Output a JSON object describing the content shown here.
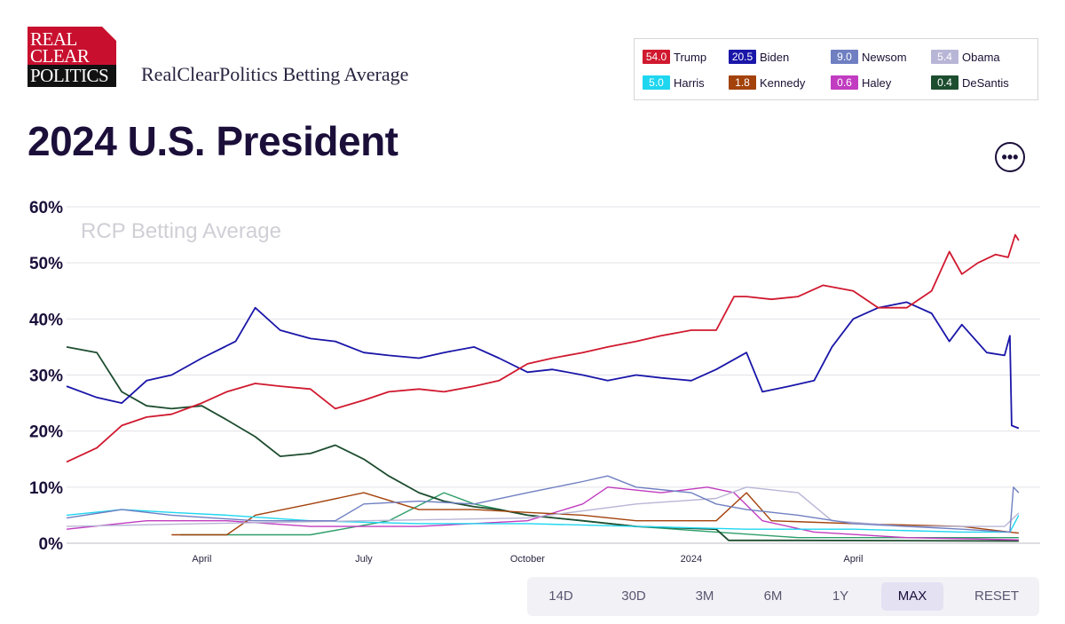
{
  "logo": {
    "line1": "REAL",
    "line2": "CLEAR",
    "line3": "POLITICS"
  },
  "header": {
    "site_title": "RealClearPolitics Betting Average"
  },
  "page": {
    "title": "2024 U.S. President"
  },
  "legend": [
    {
      "value": "54.0",
      "name": "Trump",
      "color": "#d0192f"
    },
    {
      "value": "20.5",
      "name": "Biden",
      "color": "#1a16a8"
    },
    {
      "value": "9.0",
      "name": "Newsom",
      "color": "#6f7fc2"
    },
    {
      "value": "5.4",
      "name": "Obama",
      "color": "#b8b6d6"
    },
    {
      "value": "5.0",
      "name": "Harris",
      "color": "#1fd6f0"
    },
    {
      "value": "1.8",
      "name": "Kennedy",
      "color": "#a3420b"
    },
    {
      "value": "0.6",
      "name": "Haley",
      "color": "#c13cc0"
    },
    {
      "value": "0.4",
      "name": "DeSantis",
      "color": "#1d4d2f"
    }
  ],
  "range_buttons": [
    "14D",
    "30D",
    "3M",
    "6M",
    "1Y",
    "MAX",
    "RESET"
  ],
  "active_range": "MAX",
  "more_icon": "ellipsis-icon",
  "chart_data": {
    "type": "line",
    "watermark": "RCP Betting Average",
    "ylim": [
      0,
      60
    ],
    "yticks": [
      0,
      10,
      20,
      30,
      40,
      50,
      60
    ],
    "ytick_labels": [
      "0%",
      "10%",
      "20%",
      "30%",
      "40%",
      "50%",
      "60%"
    ],
    "xlim": [
      "2023-01-15",
      "2024-07-15"
    ],
    "xticks": [
      {
        "date": "2023-04-01",
        "label": "April"
      },
      {
        "date": "2023-07-01",
        "label": "July"
      },
      {
        "date": "2023-10-01",
        "label": "October"
      },
      {
        "date": "2024-01-01",
        "label": "2024"
      },
      {
        "date": "2024-04-01",
        "label": "April"
      }
    ],
    "grid": true,
    "legend_position": "top-right",
    "series": [
      {
        "name": "Trump",
        "color": "#d0192f",
        "points": [
          [
            "2023-01-15",
            14.5
          ],
          [
            "2023-02-01",
            17
          ],
          [
            "2023-02-15",
            21
          ],
          [
            "2023-03-01",
            22.5
          ],
          [
            "2023-03-15",
            23
          ],
          [
            "2023-04-01",
            25
          ],
          [
            "2023-04-15",
            27
          ],
          [
            "2023-05-01",
            28.5
          ],
          [
            "2023-05-15",
            28
          ],
          [
            "2023-06-01",
            27.5
          ],
          [
            "2023-06-15",
            24
          ],
          [
            "2023-07-01",
            25.5
          ],
          [
            "2023-07-15",
            27
          ],
          [
            "2023-08-01",
            27.5
          ],
          [
            "2023-08-15",
            27
          ],
          [
            "2023-09-01",
            28
          ],
          [
            "2023-09-15",
            29
          ],
          [
            "2023-10-01",
            32
          ],
          [
            "2023-10-15",
            33
          ],
          [
            "2023-11-01",
            34
          ],
          [
            "2023-11-15",
            35
          ],
          [
            "2023-12-01",
            36
          ],
          [
            "2023-12-15",
            37
          ],
          [
            "2024-01-01",
            38
          ],
          [
            "2024-01-15",
            38
          ],
          [
            "2024-01-25",
            44
          ],
          [
            "2024-02-01",
            44
          ],
          [
            "2024-02-15",
            43.5
          ],
          [
            "2024-03-01",
            44
          ],
          [
            "2024-03-15",
            46
          ],
          [
            "2024-04-01",
            45
          ],
          [
            "2024-04-15",
            42
          ],
          [
            "2024-05-01",
            42
          ],
          [
            "2024-05-15",
            45
          ],
          [
            "2024-05-25",
            52
          ],
          [
            "2024-06-01",
            48
          ],
          [
            "2024-06-10",
            50
          ],
          [
            "2024-06-20",
            51.5
          ],
          [
            "2024-06-27",
            51
          ],
          [
            "2024-07-01",
            55
          ],
          [
            "2024-07-03",
            54
          ]
        ]
      },
      {
        "name": "Biden",
        "color": "#1a16a8",
        "points": [
          [
            "2023-01-15",
            28
          ],
          [
            "2023-02-01",
            26
          ],
          [
            "2023-02-15",
            25
          ],
          [
            "2023-03-01",
            29
          ],
          [
            "2023-03-15",
            30
          ],
          [
            "2023-04-01",
            33
          ],
          [
            "2023-04-20",
            36
          ],
          [
            "2023-05-01",
            42
          ],
          [
            "2023-05-15",
            38
          ],
          [
            "2023-06-01",
            36.5
          ],
          [
            "2023-06-15",
            36
          ],
          [
            "2023-07-01",
            34
          ],
          [
            "2023-07-15",
            33.5
          ],
          [
            "2023-08-01",
            33
          ],
          [
            "2023-08-15",
            34
          ],
          [
            "2023-09-01",
            35
          ],
          [
            "2023-09-15",
            33
          ],
          [
            "2023-10-01",
            30.5
          ],
          [
            "2023-10-15",
            31
          ],
          [
            "2023-11-01",
            30
          ],
          [
            "2023-11-15",
            29
          ],
          [
            "2023-12-01",
            30
          ],
          [
            "2023-12-15",
            29.5
          ],
          [
            "2024-01-01",
            29
          ],
          [
            "2024-01-15",
            31
          ],
          [
            "2024-02-01",
            34
          ],
          [
            "2024-02-10",
            27
          ],
          [
            "2024-02-25",
            28
          ],
          [
            "2024-03-10",
            29
          ],
          [
            "2024-03-20",
            35
          ],
          [
            "2024-04-01",
            40
          ],
          [
            "2024-04-15",
            42
          ],
          [
            "2024-05-01",
            43
          ],
          [
            "2024-05-15",
            41
          ],
          [
            "2024-05-25",
            36
          ],
          [
            "2024-06-01",
            39
          ],
          [
            "2024-06-15",
            34
          ],
          [
            "2024-06-25",
            33.5
          ],
          [
            "2024-06-28",
            37
          ],
          [
            "2024-06-29",
            21
          ],
          [
            "2024-07-03",
            20.5
          ]
        ]
      },
      {
        "name": "Newsom",
        "color": "#6f7fc2",
        "points": [
          [
            "2023-01-15",
            4.5
          ],
          [
            "2023-02-15",
            6
          ],
          [
            "2023-03-15",
            5
          ],
          [
            "2023-05-01",
            4
          ],
          [
            "2023-06-15",
            4
          ],
          [
            "2023-07-01",
            7
          ],
          [
            "2023-08-01",
            7.5
          ],
          [
            "2023-09-01",
            7
          ],
          [
            "2023-10-01",
            9
          ],
          [
            "2023-11-01",
            11
          ],
          [
            "2023-11-15",
            12
          ],
          [
            "2023-12-01",
            10
          ],
          [
            "2024-01-01",
            9
          ],
          [
            "2024-01-15",
            7
          ],
          [
            "2024-02-01",
            6
          ],
          [
            "2024-03-01",
            5
          ],
          [
            "2024-04-01",
            3.5
          ],
          [
            "2024-05-01",
            3
          ],
          [
            "2024-06-01",
            2.5
          ],
          [
            "2024-06-28",
            2
          ],
          [
            "2024-06-30",
            10
          ],
          [
            "2024-07-03",
            9
          ]
        ]
      },
      {
        "name": "Obama",
        "color": "#b8b6d6",
        "points": [
          [
            "2023-01-15",
            3
          ],
          [
            "2023-04-01",
            3.5
          ],
          [
            "2023-07-01",
            4
          ],
          [
            "2023-10-01",
            4.5
          ],
          [
            "2023-12-01",
            7
          ],
          [
            "2024-01-15",
            8
          ],
          [
            "2024-02-01",
            10
          ],
          [
            "2024-03-01",
            9
          ],
          [
            "2024-03-20",
            4
          ],
          [
            "2024-05-01",
            3
          ],
          [
            "2024-06-25",
            3
          ],
          [
            "2024-07-03",
            5.4
          ]
        ]
      },
      {
        "name": "Harris",
        "color": "#1fd6f0",
        "points": [
          [
            "2023-01-15",
            5
          ],
          [
            "2023-02-15",
            6
          ],
          [
            "2023-03-15",
            5.5
          ],
          [
            "2023-04-15",
            5
          ],
          [
            "2023-06-01",
            4
          ],
          [
            "2023-08-01",
            3.5
          ],
          [
            "2023-10-01",
            3.5
          ],
          [
            "2023-12-01",
            3
          ],
          [
            "2024-02-01",
            2.5
          ],
          [
            "2024-04-01",
            2.5
          ],
          [
            "2024-06-01",
            2
          ],
          [
            "2024-06-28",
            2
          ],
          [
            "2024-07-03",
            5
          ]
        ]
      },
      {
        "name": "Kennedy",
        "color": "#a3420b",
        "points": [
          [
            "2023-03-15",
            1.5
          ],
          [
            "2023-04-15",
            1.5
          ],
          [
            "2023-05-01",
            5
          ],
          [
            "2023-06-01",
            7
          ],
          [
            "2023-07-01",
            9
          ],
          [
            "2023-08-01",
            6
          ],
          [
            "2023-09-01",
            6
          ],
          [
            "2023-10-01",
            5.5
          ],
          [
            "2023-11-01",
            5
          ],
          [
            "2023-12-01",
            4
          ],
          [
            "2024-01-15",
            4
          ],
          [
            "2024-02-01",
            9
          ],
          [
            "2024-02-15",
            4
          ],
          [
            "2024-04-01",
            3.5
          ],
          [
            "2024-06-01",
            3
          ],
          [
            "2024-07-03",
            1.8
          ]
        ]
      },
      {
        "name": "Haley",
        "color": "#c13cc0",
        "points": [
          [
            "2023-01-15",
            2.5
          ],
          [
            "2023-03-01",
            4
          ],
          [
            "2023-04-15",
            4
          ],
          [
            "2023-06-01",
            3
          ],
          [
            "2023-08-01",
            3
          ],
          [
            "2023-10-01",
            4
          ],
          [
            "2023-11-01",
            7
          ],
          [
            "2023-11-15",
            10
          ],
          [
            "2023-12-15",
            9
          ],
          [
            "2024-01-10",
            10
          ],
          [
            "2024-01-25",
            9
          ],
          [
            "2024-02-10",
            4
          ],
          [
            "2024-03-10",
            2
          ],
          [
            "2024-05-01",
            1
          ],
          [
            "2024-07-03",
            0.6
          ]
        ]
      },
      {
        "name": "DeSantis",
        "color": "#1d4d2f",
        "points": [
          [
            "2023-01-15",
            35
          ],
          [
            "2023-02-01",
            34
          ],
          [
            "2023-02-15",
            27
          ],
          [
            "2023-03-01",
            24.5
          ],
          [
            "2023-03-15",
            24
          ],
          [
            "2023-04-01",
            24.5
          ],
          [
            "2023-04-15",
            22
          ],
          [
            "2023-05-01",
            19
          ],
          [
            "2023-05-15",
            15.5
          ],
          [
            "2023-06-01",
            16
          ],
          [
            "2023-06-15",
            17.5
          ],
          [
            "2023-07-01",
            15
          ],
          [
            "2023-07-15",
            12
          ],
          [
            "2023-08-01",
            9
          ],
          [
            "2023-08-15",
            7.5
          ],
          [
            "2023-09-01",
            6.5
          ],
          [
            "2023-09-15",
            6
          ],
          [
            "2023-10-01",
            5
          ],
          [
            "2023-11-01",
            4
          ],
          [
            "2023-12-01",
            3
          ],
          [
            "2024-01-15",
            2.5
          ],
          [
            "2024-01-22",
            0.5
          ],
          [
            "2024-03-01",
            0.5
          ],
          [
            "2024-07-03",
            0.4
          ]
        ]
      }
    ],
    "extra_series": [
      {
        "color": "#2e9e6a",
        "points": [
          [
            "2023-03-20",
            1.5
          ],
          [
            "2023-06-01",
            1.5
          ],
          [
            "2023-07-15",
            4
          ],
          [
            "2023-08-15",
            9
          ],
          [
            "2023-09-01",
            7
          ],
          [
            "2023-10-01",
            5
          ],
          [
            "2023-11-01",
            4
          ],
          [
            "2023-12-01",
            3
          ],
          [
            "2024-01-15",
            2
          ],
          [
            "2024-03-01",
            1
          ],
          [
            "2024-05-01",
            1
          ],
          [
            "2024-07-03",
            1
          ]
        ]
      }
    ]
  }
}
